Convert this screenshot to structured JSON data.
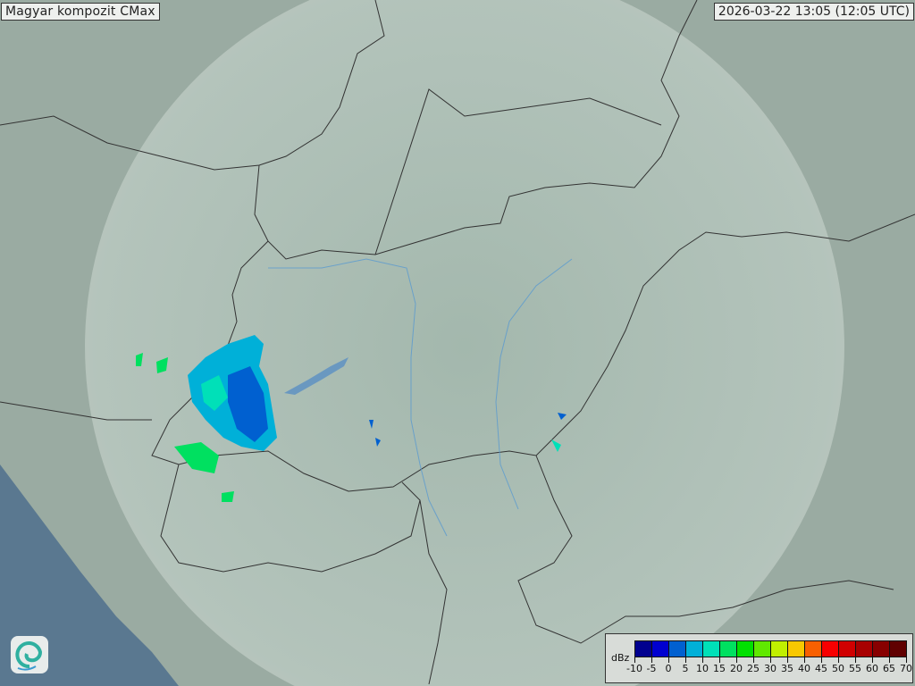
{
  "title": "Magyar kompozit  CMax",
  "timestamp": "2026-03-22 13:05 (12:05 UTC)",
  "legend": {
    "unit": "dBz",
    "ticks": [
      "-10",
      "-5",
      "0",
      "5",
      "10",
      "15",
      "20",
      "25",
      "30",
      "35",
      "40",
      "45",
      "50",
      "55",
      "60",
      "65",
      "70"
    ],
    "colors": [
      "#00008f",
      "#0000d0",
      "#0060d0",
      "#00b0d8",
      "#00e0b8",
      "#00e060",
      "#00e000",
      "#60e800",
      "#c0f000",
      "#f8c800",
      "#f86000",
      "#f80000",
      "#d00000",
      "#a80000",
      "#880000",
      "#600000"
    ]
  },
  "logo": {
    "icon": "swirl-logo-icon"
  },
  "colors": {
    "land": "#9aaea4",
    "sea": "#5a7890",
    "coverage": "#c8d8d0",
    "border": "#333333",
    "river": "#5a9ad0"
  }
}
